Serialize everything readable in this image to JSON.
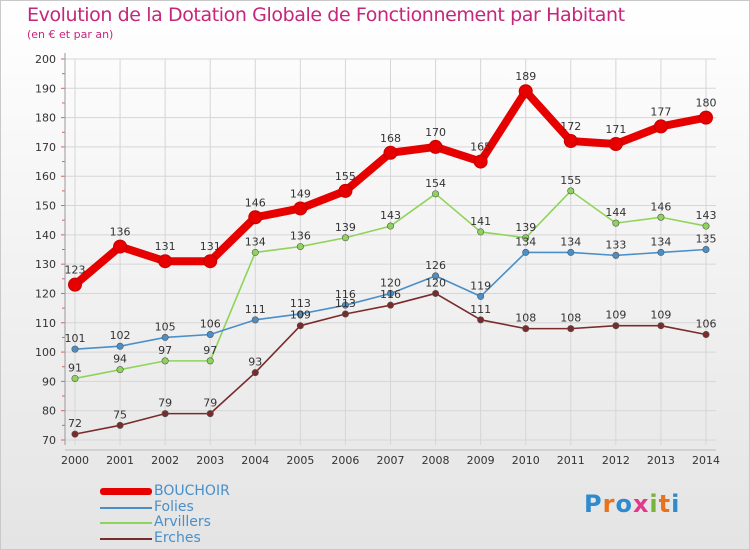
{
  "title": "Evolution de la Dotation Globale de Fonctionnement par Habitant",
  "subtitle": "(en € et par an)",
  "logo": {
    "text": "Proxiti",
    "letter_colors": [
      "#2e8bd0",
      "#e8731c",
      "#2e8bd0",
      "#e23a8a",
      "#7ab33a",
      "#e8731c",
      "#2e8bd0"
    ]
  },
  "chart_data": {
    "type": "line",
    "x": [
      "2000",
      "2001",
      "2002",
      "2003",
      "2004",
      "2005",
      "2006",
      "2007",
      "2008",
      "2009",
      "2010",
      "2011",
      "2012",
      "2013",
      "2014"
    ],
    "ylim": [
      70,
      200
    ],
    "yticks": [
      "70",
      "80",
      "90",
      "100",
      "110",
      "120",
      "130",
      "140",
      "150",
      "160",
      "170",
      "180",
      "190",
      "200"
    ],
    "grid": true,
    "legend_position": "bottom-left",
    "series": [
      {
        "name": "BOUCHOIR",
        "color": "#e60000",
        "values": [
          123,
          136,
          131,
          131,
          146,
          149,
          155,
          168,
          170,
          165,
          189,
          172,
          171,
          177,
          180
        ],
        "labels": [
          "123",
          "136",
          "131",
          "131",
          "146",
          "149",
          "155",
          "168",
          "170",
          "165",
          "189",
          "172",
          "171",
          "177",
          "180"
        ]
      },
      {
        "name": "Folies",
        "color": "#4a8fc7",
        "values": [
          101,
          102,
          105,
          106,
          111,
          113,
          116,
          120,
          126,
          119,
          134,
          134,
          133,
          134,
          135
        ],
        "labels": [
          "101",
          "102",
          "105",
          "106",
          "111",
          "113",
          "116",
          "120",
          "126",
          "119",
          "134",
          "134",
          "133",
          "134",
          "135"
        ]
      },
      {
        "name": "Arvillers",
        "color": "#8fd45a",
        "values": [
          91,
          94,
          97,
          97,
          134,
          136,
          139,
          143,
          154,
          141,
          139,
          155,
          144,
          146,
          143
        ],
        "labels": [
          "91",
          "94",
          "97",
          "97",
          "134",
          "136",
          "139",
          "143",
          "154",
          "141",
          "139",
          "155",
          "144",
          "146",
          "143"
        ]
      },
      {
        "name": "Erches",
        "color": "#7a2b2b",
        "values": [
          72,
          75,
          79,
          79,
          93,
          109,
          113,
          116,
          120,
          111,
          108,
          108,
          109,
          109,
          106
        ],
        "labels": [
          "72",
          "75",
          "79",
          "79",
          "93",
          "109",
          "113",
          "116",
          "120",
          "111",
          "108",
          "108",
          "109",
          "109",
          "106"
        ]
      }
    ]
  }
}
